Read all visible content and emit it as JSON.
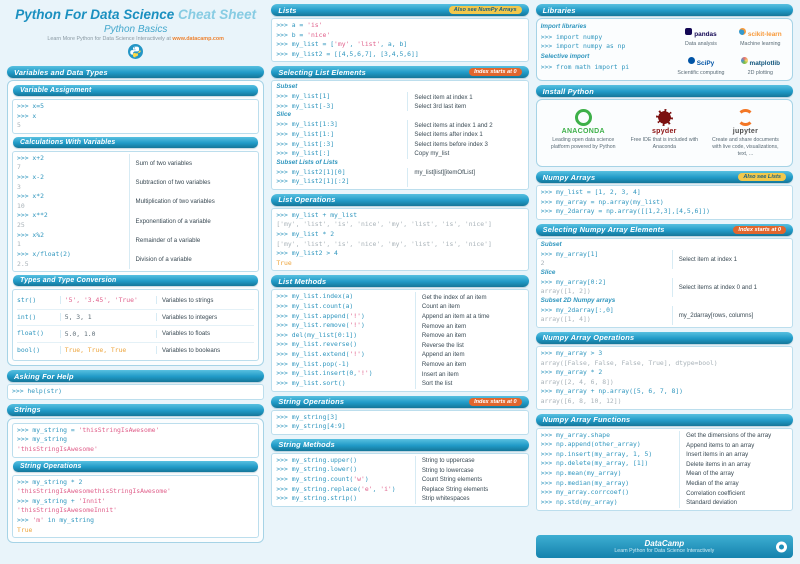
{
  "colors": {
    "teal": "#2099C7",
    "yellow_badge": "#F2C84B",
    "orange_badge": "#E2662D",
    "code": "#2F96BE",
    "string": "#E0608B",
    "bool": "#EDA43B"
  },
  "header": {
    "title_main": "Python For Data Science",
    "title_accent": "Cheat Sheet",
    "subtitle": "Python Basics",
    "tagline_pre": "Learn More Python for Data Science Interactively at",
    "tagline_link": "www.datacamp.com"
  },
  "left": {
    "variables_title": "Variables and Data Types",
    "variable_assignment": {
      "title": "Variable Assignment",
      "lines": [
        {
          "t": ">>> x=5"
        },
        {
          "t": ">>> x"
        },
        {
          "t": "5",
          "c": "out"
        }
      ]
    },
    "calculations": {
      "title": "Calculations With Variables",
      "rows": [
        {
          "code": ">>> x+2",
          "out": "7",
          "desc": "Sum of two variables"
        },
        {
          "code": ">>> x-2",
          "out": "3",
          "desc": "Subtraction of two variables"
        },
        {
          "code": ">>> x*2",
          "out": "10",
          "desc": "Multiplication of two variables"
        },
        {
          "code": ">>> x**2",
          "out": "25",
          "desc": "Exponentiation of a variable"
        },
        {
          "code": ">>> x%2",
          "out": "1",
          "desc": "Remainder of a variable"
        },
        {
          "code": ">>> x/float(2)",
          "out": "2.5",
          "desc": "Division of a variable"
        }
      ]
    },
    "types": {
      "title": "Types and Type Conversion",
      "rows": [
        {
          "func": "str()",
          "example": "'5', '3.45', 'True'",
          "ec": "str",
          "desc": "Variables to strings"
        },
        {
          "func": "int()",
          "example": "5, 3, 1",
          "ec": "plain",
          "desc": "Variables to integers"
        },
        {
          "func": "float()",
          "example": "5.0, 1.0",
          "ec": "plain",
          "desc": "Variables to floats"
        },
        {
          "func": "bool()",
          "example": "True, True, True",
          "ec": "bool",
          "desc": "Variables to booleans"
        }
      ]
    },
    "help": {
      "title": "Asking For Help",
      "lines": [
        {
          "t": ">>> help(str)"
        }
      ]
    },
    "strings": {
      "title": "Strings",
      "lines": [
        {
          "t": ">>> my_string = 'thisStringIsAwesome'"
        },
        {
          "t": ">>> my_string"
        },
        {
          "t": "'thisStringIsAwesome'",
          "c": "str"
        }
      ]
    },
    "string_ops": {
      "title": "String Operations",
      "lines": [
        {
          "t": ">>> my_string * 2"
        },
        {
          "t": "'thisStringIsAwesomethisStringIsAwesome'",
          "c": "str"
        },
        {
          "t": ">>> my_string + 'Innit'"
        },
        {
          "t": "'thisStringIsAwesomeInnit'",
          "c": "str"
        },
        {
          "t": ">>> 'm' in my_string"
        },
        {
          "t": "True",
          "c": "bool"
        }
      ]
    }
  },
  "middle": {
    "lists": {
      "title": "Lists",
      "badge": "Also see NumPy Arrays",
      "lines": [
        {
          "t": ">>> a = 'is'"
        },
        {
          "t": ">>> b = 'nice'"
        },
        {
          "t": ">>> my_list = ['my', 'list', a, b]"
        },
        {
          "t": ">>> my_list2 = [[4,5,6,7], [3,4,5,6]]"
        }
      ]
    },
    "selecting": {
      "title": "Selecting List Elements",
      "badge": "Index starts at 0",
      "rows": [
        {
          "label": "Subset"
        },
        {
          "code": ">>> my_list[1]",
          "desc": "Select item at index 1"
        },
        {
          "code": ">>> my_list[-3]",
          "desc": "Select 3rd last item"
        },
        {
          "label": "Slice"
        },
        {
          "code": ">>> my_list[1:3]",
          "desc": "Select items at index 1 and 2"
        },
        {
          "code": ">>> my_list[1:]",
          "desc": "Select items after index 1"
        },
        {
          "code": ">>> my_list[:3]",
          "desc": "Select items before index 3"
        },
        {
          "code": ">>> my_list[:]",
          "desc": "Copy my_list"
        },
        {
          "label": "Subset Lists of Lists"
        },
        {
          "code": ">>> my_list2[1][0]",
          "desc": "my_list[list][itemOfList]"
        },
        {
          "code": ">>> my_list2[1][:2]",
          "desc": ""
        }
      ]
    },
    "list_ops": {
      "title": "List Operations",
      "lines": [
        {
          "t": ">>> my_list + my_list"
        },
        {
          "t": "['my', 'list', 'is', 'nice', 'my', 'list', 'is', 'nice']",
          "c": "out"
        },
        {
          "t": ">>> my_list * 2"
        },
        {
          "t": "['my', 'list', 'is', 'nice', 'my', 'list', 'is', 'nice']",
          "c": "out"
        },
        {
          "t": ">>> my_list2 > 4"
        },
        {
          "t": "True",
          "c": "bool"
        }
      ]
    },
    "list_methods": {
      "title": "List Methods",
      "rows": [
        {
          "code": ">>> my_list.index(a)",
          "desc": "Get the index of an item"
        },
        {
          "code": ">>> my_list.count(a)",
          "desc": "Count an item"
        },
        {
          "code": ">>> my_list.append('!')",
          "desc": "Append an item at a time"
        },
        {
          "code": ">>> my_list.remove('!')",
          "desc": "Remove an item"
        },
        {
          "code": ">>> del(my_list[0:1])",
          "desc": "Remove an item"
        },
        {
          "code": ">>> my_list.reverse()",
          "desc": "Reverse the list"
        },
        {
          "code": ">>> my_list.extend('!')",
          "desc": "Append an item"
        },
        {
          "code": ">>> my_list.pop(-1)",
          "desc": "Remove an item"
        },
        {
          "code": ">>> my_list.insert(0,'!')",
          "desc": "Insert an item"
        },
        {
          "code": ">>> my_list.sort()",
          "desc": "Sort the list"
        }
      ]
    },
    "string_ops2": {
      "title": "String Operations",
      "badge": "Index starts at 0",
      "lines": [
        {
          "t": ">>> my_string[3]"
        },
        {
          "t": ">>> my_string[4:9]"
        }
      ]
    },
    "string_methods": {
      "title": "String Methods",
      "rows": [
        {
          "code": ">>> my_string.upper()",
          "desc": "String to uppercase"
        },
        {
          "code": ">>> my_string.lower()",
          "desc": "String to lowercase"
        },
        {
          "code": ">>> my_string.count('w')",
          "desc": "Count String elements"
        },
        {
          "code": ">>> my_string.replace('e', 'i')",
          "desc": "Replace String elements"
        },
        {
          "code": ">>> my_string.strip()",
          "desc": "Strip whitespaces"
        }
      ]
    }
  },
  "right": {
    "libraries": {
      "title": "Libraries",
      "import_label": "Import libraries",
      "import_lines": [
        {
          "t": ">>> import numpy"
        },
        {
          "t": ">>> import numpy as np"
        }
      ],
      "selective_label": "Selective import",
      "selective_lines": [
        {
          "t": ">>> from math import pi"
        }
      ],
      "logos": [
        {
          "icon": "pandas-icon",
          "name": "pandas",
          "caption": "Data analysis"
        },
        {
          "icon": "scikit-learn-icon",
          "name": "scikit-learn",
          "caption": "Machine learning"
        },
        {
          "icon": "scipy-icon",
          "name": "SciPy",
          "caption": "Scientific computing"
        },
        {
          "icon": "matplotlib-icon",
          "name": "matplotlib",
          "caption": "2D plotting"
        }
      ]
    },
    "install": {
      "title": "Install Python",
      "items": [
        {
          "icon": "anaconda-icon",
          "name": "ANACONDA",
          "caption": "Leading open data science platform powered by Python"
        },
        {
          "icon": "spyder-icon",
          "name": "spyder",
          "caption": "Free IDE that is included with Anaconda"
        },
        {
          "icon": "jupyter-icon",
          "name": "jupyter",
          "caption": "Create and share documents with live code, visualizations, text, ..."
        }
      ]
    },
    "numpy_arrays": {
      "title": "Numpy Arrays",
      "badge": "Also see Lists",
      "lines": [
        {
          "t": ">>> my_list = [1, 2, 3, 4]"
        },
        {
          "t": ">>> my_array = np.array(my_list)"
        },
        {
          "t": ">>> my_2darray = np.array([[1,2,3],[4,5,6]])"
        }
      ]
    },
    "numpy_selecting": {
      "title": "Selecting Numpy Array Elements",
      "badge": "Index starts at 0",
      "rows": [
        {
          "label": "Subset"
        },
        {
          "code": ">>> my_array[1]",
          "out": "2",
          "desc": "Select item at index 1"
        },
        {
          "label": "Slice"
        },
        {
          "code": ">>> my_array[0:2]",
          "out": "array([1, 2])",
          "desc": "Select items at index 0 and 1"
        },
        {
          "label": "Subset 2D Numpy arrays"
        },
        {
          "code": ">>> my_2darray[:,0]",
          "out": "array([1, 4])",
          "desc": "my_2darray[rows, columns]"
        }
      ]
    },
    "numpy_ops": {
      "title": "Numpy Array Operations",
      "lines": [
        {
          "t": ">>> my_array > 3"
        },
        {
          "t": "array([False, False, False, True], dtype=bool)",
          "c": "out"
        },
        {
          "t": ">>> my_array * 2"
        },
        {
          "t": "array([2, 4, 6, 8])",
          "c": "out"
        },
        {
          "t": ">>> my_array + np.array([5, 6, 7, 8])"
        },
        {
          "t": "array([6, 8, 10, 12])",
          "c": "out"
        }
      ]
    },
    "numpy_funcs": {
      "title": "Numpy Array Functions",
      "rows": [
        {
          "code": ">>> my_array.shape",
          "desc": "Get the dimensions of the array"
        },
        {
          "code": ">>> np.append(other_array)",
          "desc": "Append items to an array"
        },
        {
          "code": ">>> np.insert(my_array, 1, 5)",
          "desc": "Insert items in an array"
        },
        {
          "code": ">>> np.delete(my_array, [1])",
          "desc": "Delete items in an array"
        },
        {
          "code": ">>> np.mean(my_array)",
          "desc": "Mean of the array"
        },
        {
          "code": ">>> np.median(my_array)",
          "desc": "Median of the array"
        },
        {
          "code": ">>> my_array.corrcoef()",
          "desc": "Correlation coefficient"
        },
        {
          "code": ">>> np.std(my_array)",
          "desc": "Standard deviation"
        }
      ]
    },
    "footer": {
      "brand": "DataCamp",
      "tagline": "Learn Python for Data Science Interactively"
    }
  }
}
